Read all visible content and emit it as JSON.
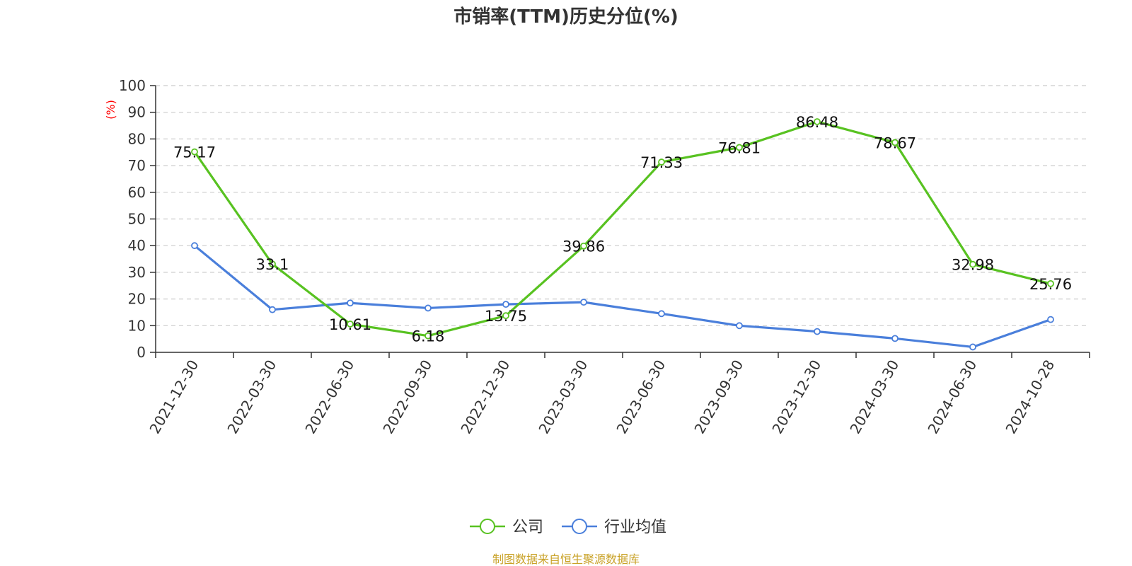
{
  "chart_data": {
    "type": "line",
    "title": "市销率(TTM)历史分位(%)",
    "y_unit": "(%)",
    "ylim": [
      0,
      100
    ],
    "y_ticks": [
      0,
      10,
      20,
      30,
      40,
      50,
      60,
      70,
      80,
      90,
      100
    ],
    "grid": true,
    "legend_placement": "bottom-center",
    "categories": [
      "2021-12-30",
      "2022-03-30",
      "2022-06-30",
      "2022-09-30",
      "2022-12-30",
      "2023-03-30",
      "2023-06-30",
      "2023-09-30",
      "2023-12-30",
      "2024-03-30",
      "2024-06-30",
      "2024-10-28"
    ],
    "series": [
      {
        "name": "公司",
        "color": "#58c221",
        "show_labels": true,
        "values": [
          75.17,
          33.1,
          10.61,
          6.18,
          13.75,
          39.86,
          71.33,
          76.81,
          86.48,
          78.67,
          32.98,
          25.76
        ],
        "labels": [
          "75.17",
          "33.1",
          "10.61",
          "6.18",
          "13.75",
          "39.86",
          "71.33",
          "76.81",
          "86.48",
          "78.67",
          "32.98",
          "25.76"
        ]
      },
      {
        "name": "行业均值",
        "color": "#4a7fdb",
        "show_labels": false,
        "values": [
          40.0,
          16.0,
          18.5,
          16.6,
          18.0,
          18.8,
          14.5,
          10.0,
          7.8,
          5.2,
          2.0,
          12.3
        ]
      }
    ]
  },
  "source": {
    "text": "制图数据来自恒生聚源数据库",
    "color": "#c9a227"
  }
}
